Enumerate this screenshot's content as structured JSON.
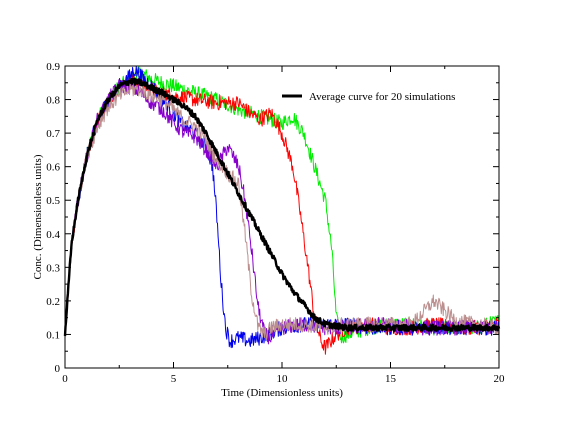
{
  "chart_data": {
    "type": "line",
    "title": "",
    "xlabel": "Time (Dimensionless units)",
    "ylabel": "Conc. (Dimensionless units)",
    "xlim": [
      0,
      20
    ],
    "ylim": [
      0,
      0.9
    ],
    "xticks": [
      "0",
      "5",
      "10",
      "15",
      "20"
    ],
    "yticks": [
      "0",
      "0.1",
      "0.2",
      "0.3",
      "0.4",
      "0.5",
      "0.6",
      "0.7",
      "0.8",
      "0.9"
    ],
    "grid": false,
    "legend": {
      "position": "top-right",
      "entries": [
        "Average curve for 20 simulations"
      ]
    },
    "noisy": true,
    "series": [
      {
        "name": "Average curve for 20 simulations",
        "color": "#000000",
        "x": [
          0,
          0.3,
          0.6,
          1.0,
          1.5,
          2.0,
          2.5,
          3.0,
          3.5,
          4.0,
          4.5,
          5.0,
          5.5,
          6.0,
          6.5,
          7.0,
          7.5,
          8.0,
          8.5,
          9.0,
          9.5,
          10.0,
          10.5,
          11.0,
          11.5,
          12.0,
          13.0,
          14.0,
          15.0,
          16.0,
          17.0,
          18.0,
          19.0,
          20.0
        ],
        "y": [
          0.1,
          0.37,
          0.5,
          0.63,
          0.74,
          0.8,
          0.84,
          0.855,
          0.85,
          0.835,
          0.82,
          0.8,
          0.78,
          0.75,
          0.7,
          0.64,
          0.58,
          0.52,
          0.46,
          0.4,
          0.34,
          0.28,
          0.23,
          0.19,
          0.15,
          0.13,
          0.12,
          0.12,
          0.12,
          0.12,
          0.12,
          0.12,
          0.12,
          0.12
        ]
      },
      {
        "color": "#00ee00",
        "x": [
          0,
          0.3,
          0.6,
          1.0,
          1.5,
          2.0,
          2.5,
          3.0,
          3.5,
          4.0,
          5.0,
          6.0,
          7.0,
          8.0,
          9.0,
          10.0,
          10.5,
          11.0,
          11.5,
          12.0,
          12.3,
          12.5,
          12.7,
          13.0,
          14.0,
          15.0,
          16.0,
          17.0,
          18.0,
          19.0,
          20.0
        ],
        "y": [
          0.1,
          0.37,
          0.5,
          0.63,
          0.74,
          0.8,
          0.84,
          0.86,
          0.88,
          0.86,
          0.84,
          0.82,
          0.8,
          0.77,
          0.75,
          0.73,
          0.75,
          0.7,
          0.6,
          0.5,
          0.35,
          0.15,
          0.09,
          0.1,
          0.12,
          0.13,
          0.13,
          0.12,
          0.12,
          0.12,
          0.14
        ]
      },
      {
        "color": "#ff0000",
        "x": [
          0,
          0.3,
          0.6,
          1.0,
          1.5,
          2.0,
          2.5,
          3.0,
          3.5,
          4.0,
          5.0,
          6.0,
          7.0,
          8.0,
          8.5,
          9.0,
          9.5,
          10.0,
          10.5,
          10.8,
          11.2,
          11.5,
          11.8,
          12.0,
          12.5,
          13.0,
          14.0,
          15.0,
          16.0,
          17.0,
          18.0,
          19.0,
          20.0
        ],
        "y": [
          0.1,
          0.37,
          0.5,
          0.63,
          0.74,
          0.8,
          0.84,
          0.86,
          0.85,
          0.83,
          0.81,
          0.8,
          0.79,
          0.79,
          0.76,
          0.74,
          0.76,
          0.7,
          0.6,
          0.48,
          0.3,
          0.15,
          0.08,
          0.06,
          0.1,
          0.12,
          0.13,
          0.12,
          0.12,
          0.13,
          0.12,
          0.12,
          0.13
        ]
      },
      {
        "color": "#0000ee",
        "x": [
          0,
          0.3,
          0.6,
          1.0,
          1.5,
          2.0,
          2.5,
          3.0,
          3.2,
          3.5,
          4.0,
          4.5,
          5.0,
          5.5,
          6.0,
          6.5,
          6.8,
          7.0,
          7.2,
          7.4,
          7.6,
          8.0,
          8.5,
          9.0,
          10.0,
          11.0,
          12.0,
          13.0,
          14.0,
          15.0,
          16.0,
          17.0,
          18.0,
          19.0,
          20.0
        ],
        "y": [
          0.1,
          0.37,
          0.5,
          0.63,
          0.74,
          0.8,
          0.84,
          0.87,
          0.89,
          0.87,
          0.84,
          0.8,
          0.76,
          0.72,
          0.7,
          0.66,
          0.6,
          0.45,
          0.25,
          0.12,
          0.08,
          0.09,
          0.08,
          0.09,
          0.12,
          0.13,
          0.13,
          0.13,
          0.12,
          0.12,
          0.12,
          0.12,
          0.12,
          0.12,
          0.12
        ]
      },
      {
        "color": "#8800cc",
        "x": [
          0,
          0.3,
          0.6,
          1.0,
          1.5,
          2.0,
          2.5,
          3.0,
          3.5,
          4.0,
          4.5,
          5.0,
          5.5,
          6.0,
          6.5,
          7.0,
          7.5,
          8.0,
          8.3,
          8.6,
          8.9,
          9.2,
          9.5,
          10.0,
          11.0,
          12.0,
          13.0,
          14.0,
          15.0,
          16.0,
          17.0,
          18.0,
          19.0,
          20.0
        ],
        "y": [
          0.1,
          0.37,
          0.5,
          0.63,
          0.74,
          0.8,
          0.84,
          0.84,
          0.82,
          0.79,
          0.77,
          0.73,
          0.7,
          0.69,
          0.65,
          0.6,
          0.66,
          0.6,
          0.5,
          0.35,
          0.18,
          0.1,
          0.09,
          0.12,
          0.13,
          0.12,
          0.12,
          0.13,
          0.13,
          0.12,
          0.12,
          0.12,
          0.12,
          0.12
        ]
      },
      {
        "color": "#bc8f8f",
        "x": [
          0,
          0.3,
          0.6,
          1.0,
          1.5,
          2.0,
          2.5,
          3.0,
          3.5,
          4.0,
          4.5,
          5.0,
          5.5,
          6.0,
          6.5,
          7.0,
          7.5,
          8.0,
          8.3,
          8.6,
          8.9,
          9.2,
          9.5,
          10.0,
          11.0,
          12.0,
          13.0,
          14.0,
          15.0,
          16.0,
          17.0,
          18.0,
          19.0,
          20.0
        ],
        "y": [
          0.1,
          0.37,
          0.5,
          0.63,
          0.72,
          0.78,
          0.81,
          0.83,
          0.83,
          0.81,
          0.8,
          0.77,
          0.74,
          0.72,
          0.68,
          0.62,
          0.58,
          0.55,
          0.4,
          0.22,
          0.12,
          0.1,
          0.12,
          0.13,
          0.13,
          0.12,
          0.13,
          0.13,
          0.13,
          0.13,
          0.2,
          0.14,
          0.13,
          0.12
        ]
      }
    ]
  }
}
